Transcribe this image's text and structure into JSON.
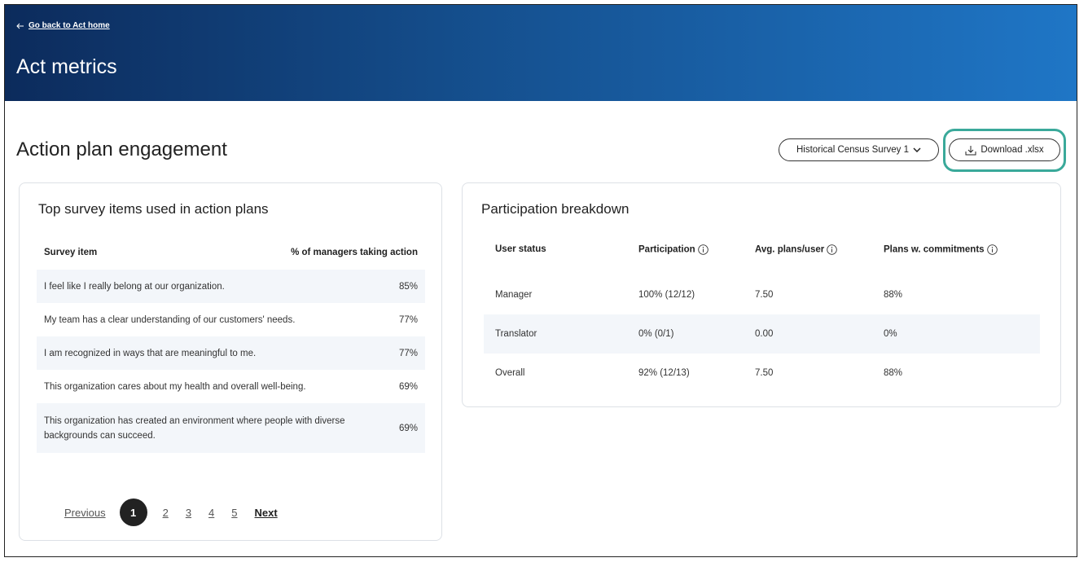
{
  "header": {
    "back_link": "Go back to Act home",
    "title": "Act metrics"
  },
  "section": {
    "title": "Action plan engagement",
    "survey_select": "Historical Census Survey 1",
    "download_button": "Download .xlsx"
  },
  "top_items": {
    "title": "Top survey items used in action plans",
    "columns": [
      "Survey item",
      "% of managers taking action"
    ],
    "rows": [
      [
        "I feel like I really belong at our organization.",
        "85%"
      ],
      [
        "My team has a clear understanding of our customers' needs.",
        "77%"
      ],
      [
        "I am recognized in ways that are meaningful to me.",
        "77%"
      ],
      [
        "This organization cares about my health and overall well-being.",
        "69%"
      ],
      [
        "This organization has created an environment where people with diverse backgrounds can succeed.",
        "69%"
      ]
    ],
    "pagination": {
      "previous": "Previous",
      "pages": [
        1,
        2,
        3,
        4,
        5
      ],
      "next": "Next"
    }
  },
  "participation": {
    "title": "Participation breakdown",
    "columns": [
      "User status",
      "Participation",
      "Avg. plans/user",
      "Plans w. commitments"
    ],
    "rows": [
      [
        "Manager",
        "100% (12/12)",
        "7.50",
        "88%"
      ],
      [
        "Translator",
        "0% (0/1)",
        "0.00",
        "0%"
      ],
      [
        "Overall",
        "92% (12/13)",
        "7.50",
        "88%"
      ]
    ]
  }
}
